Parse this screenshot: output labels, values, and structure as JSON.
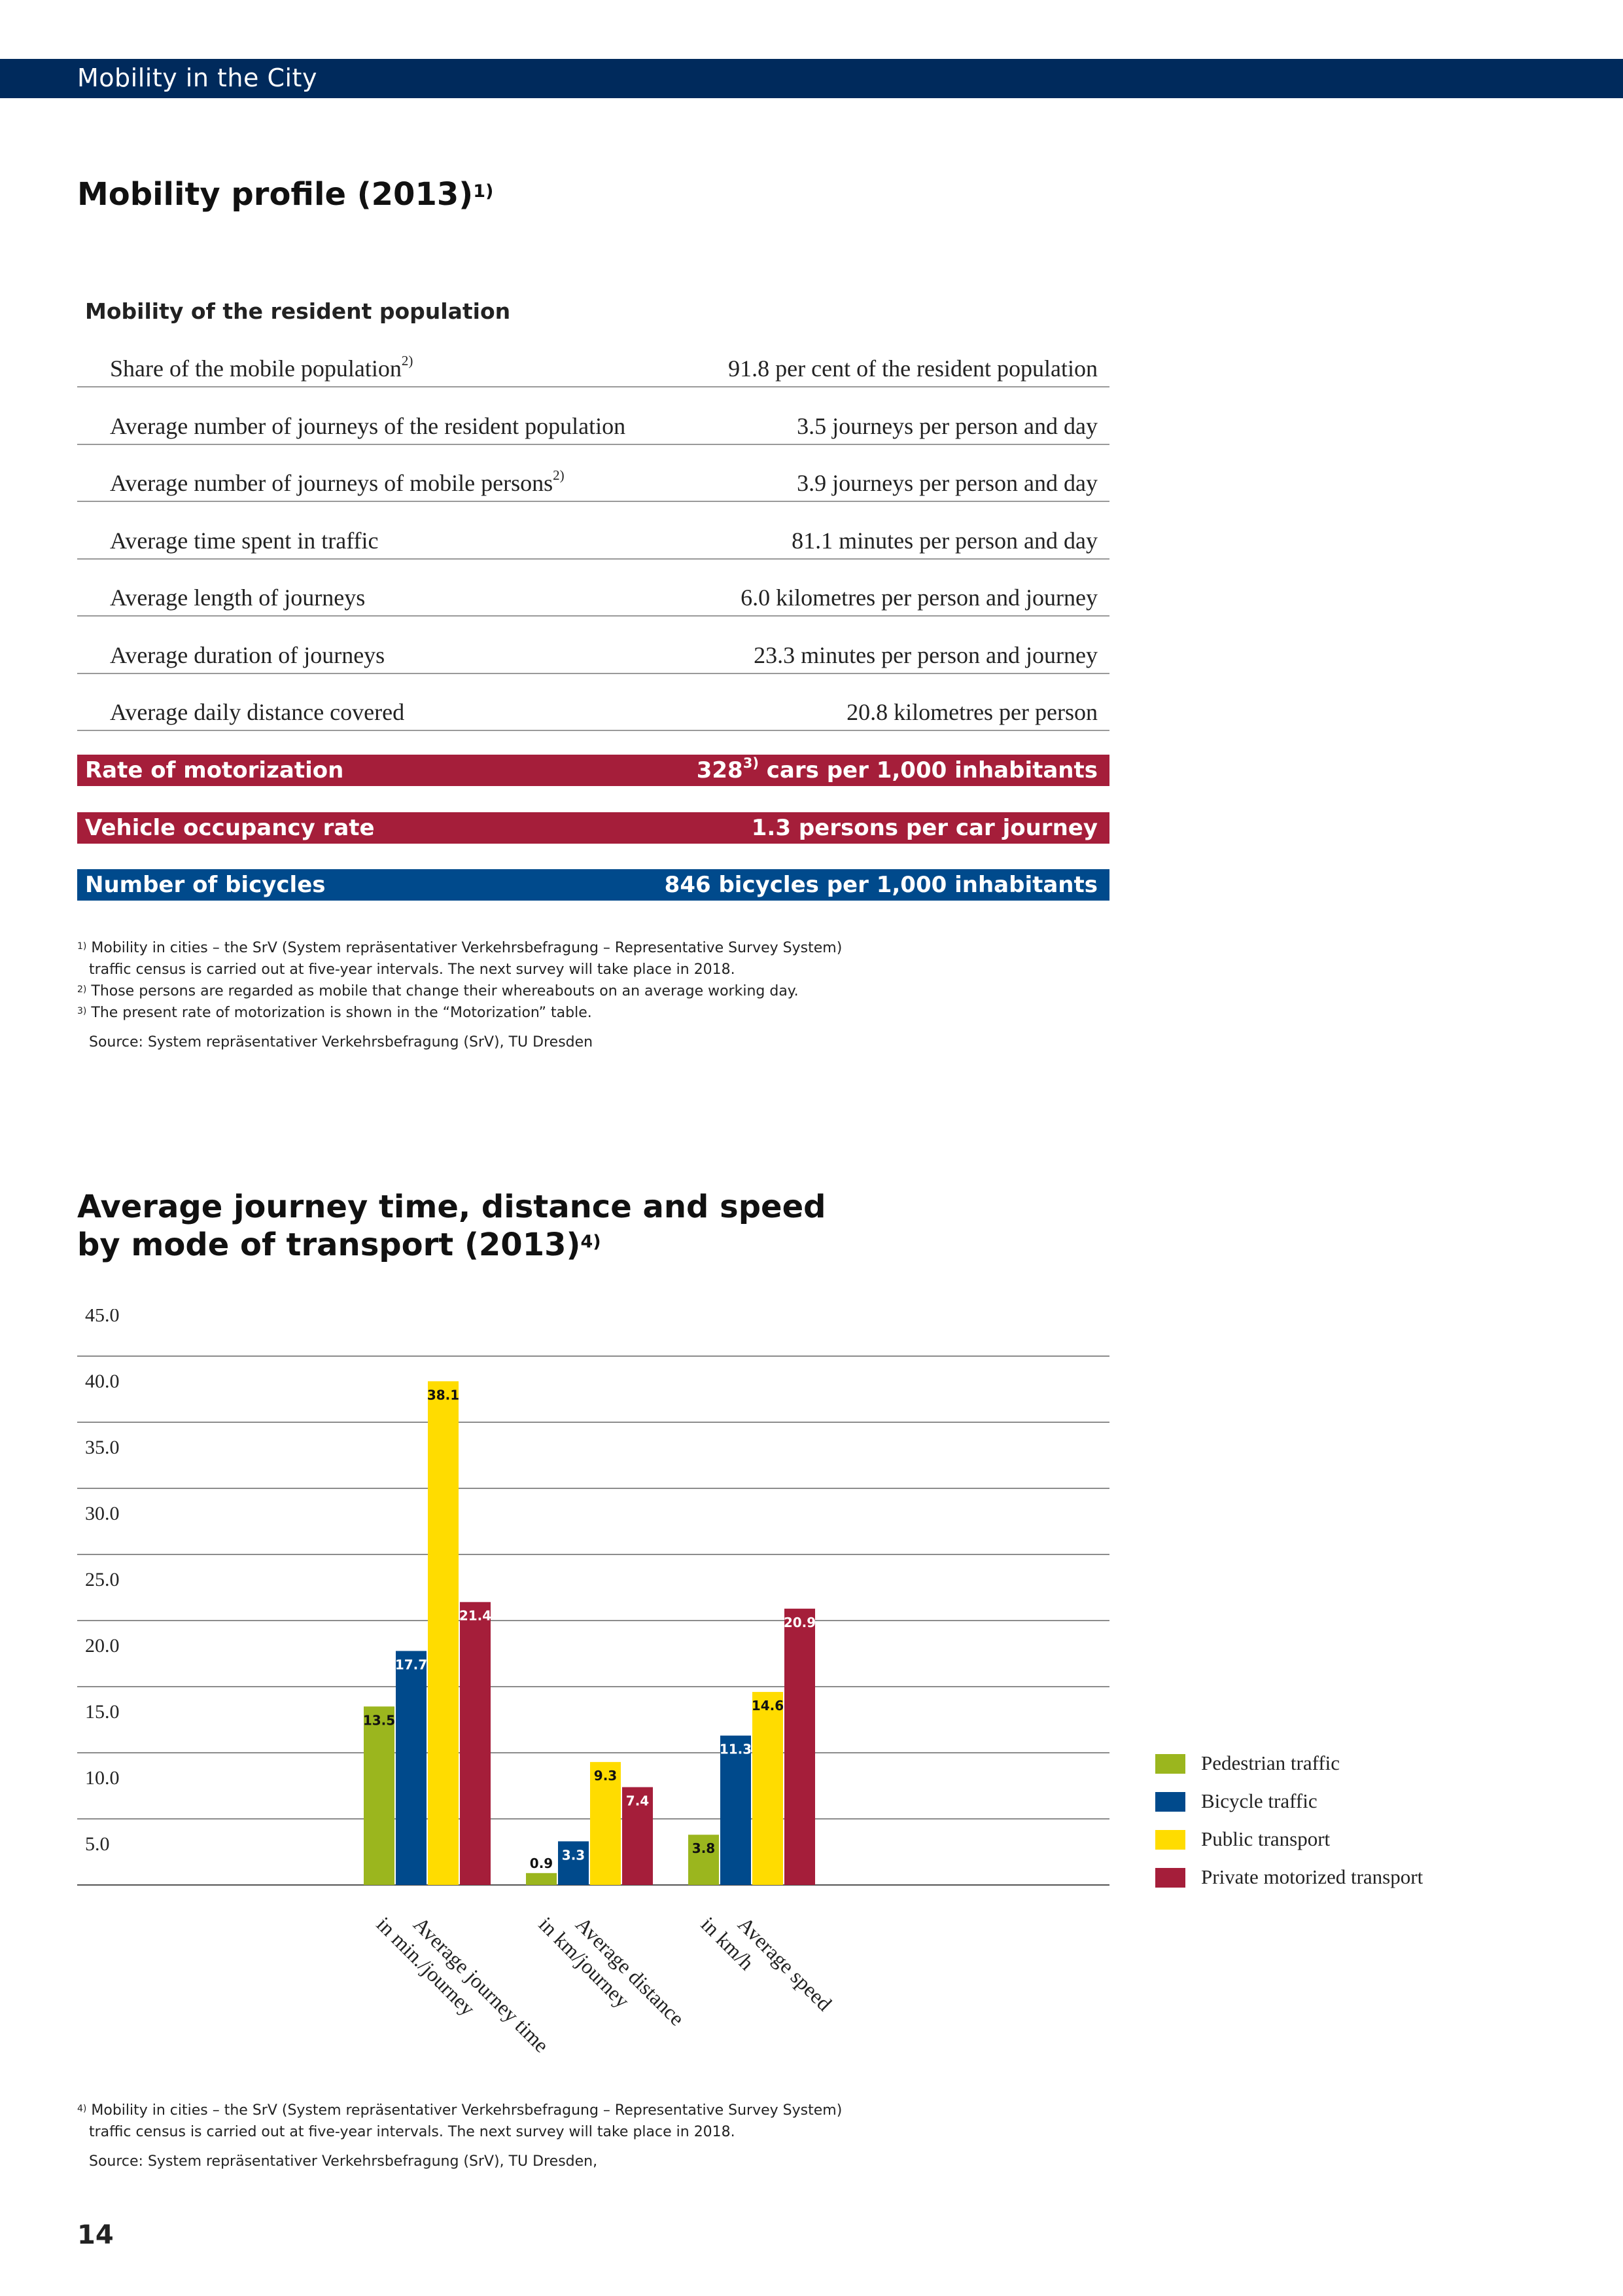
{
  "header": {
    "title": "Mobility in the City"
  },
  "profile": {
    "title": "Mobility profile (2013)",
    "title_sup": "1)",
    "subtitle": "Mobility of the resident population",
    "rows": [
      {
        "label": "Share of the mobile population",
        "sup": "2)",
        "value": "91.8 per cent of the resident population"
      },
      {
        "label": "Average number of journeys of the resident population",
        "sup": "",
        "value": "3.5 journeys per person and day"
      },
      {
        "label": "Average number of journeys of mobile persons",
        "sup": "2)",
        "value": "3.9 journeys per person and day"
      },
      {
        "label": "Average time spent in traffic",
        "sup": "",
        "value": "81.1 minutes per person and day"
      },
      {
        "label": "Average length of journeys",
        "sup": "",
        "value": "6.0 kilometres per person and journey"
      },
      {
        "label": "Average duration of journeys",
        "sup": "",
        "value": "23.3 minutes per person and journey"
      },
      {
        "label": "Average daily distance covered",
        "sup": "",
        "value": "20.8 kilometres per person"
      }
    ],
    "highlights": [
      {
        "label": "Rate of motorization",
        "value_num": "328",
        "value_sup": "3)",
        "value_rest": "cars per 1,000 inhabitants",
        "color": "#a51e3a"
      },
      {
        "label": "Vehicle occupancy rate",
        "value_num": "",
        "value_sup": "",
        "value_rest": "1.3 persons per car journey",
        "color": "#a51e3a"
      },
      {
        "label": "Number of bicycles",
        "value_num": "",
        "value_sup": "",
        "value_rest": "846 bicycles per 1,000 inhabitants",
        "color": "#004a8c"
      }
    ],
    "footnotes": {
      "n1_mark": "1)",
      "n1_line1": "Mobility in cities – the SrV (System repräsentativer Verkehrsbefragung – Representative Survey System)",
      "n1_line2": "traffic census is carried out at five-year intervals. The next survey will take place in 2018.",
      "n2_mark": "2)",
      "n2_line1": "Those persons are regarded as mobile that change their whereabouts on an average working day.",
      "n3_mark": "3)",
      "n3_line1": "The present rate of motorization is shown in the “Motorization” table.",
      "source": "Source: System repräsentativer Verkehrsbefragung (SrV), TU Dresden"
    }
  },
  "chart_section": {
    "title_line1": "Average journey time, distance and speed",
    "title_line2": "by mode of transport (2013)",
    "title_sup": "4)",
    "footnotes": {
      "n4_mark": "4)",
      "n4_line1": "Mobility in cities – the SrV (System repräsentativer Verkehrsbefragung – Representative Survey System)",
      "n4_line2": "traffic census is carried out at five-year intervals. The next survey will take place in 2018.",
      "source": "Source: System repräsentativer Verkehrsbefragung (SrV), TU Dresden,"
    }
  },
  "chart_data": {
    "type": "bar",
    "title": "Average journey time, distance and speed by mode of transport (2013)",
    "categories": [
      [
        "Average journey time",
        "in min./journey"
      ],
      [
        "Average distance",
        "in km/journey"
      ],
      [
        "Average speed",
        "in km/h"
      ]
    ],
    "series": [
      {
        "name": "Pedestrian traffic",
        "color": "#9bb61e",
        "values": [
          13.5,
          0.9,
          3.8
        ]
      },
      {
        "name": "Bicycle traffic",
        "color": "#004a8c",
        "values": [
          17.7,
          3.3,
          11.3
        ]
      },
      {
        "name": "Public transport",
        "color": "#ffdc00",
        "values": [
          38.1,
          9.3,
          14.6
        ]
      },
      {
        "name": "Private motorized transport",
        "color": "#a51e3a",
        "values": [
          21.4,
          7.4,
          20.9
        ]
      }
    ],
    "y_ticks": [
      "5.0",
      "10.0",
      "15.0",
      "20.0",
      "25.0",
      "30.0",
      "35.0",
      "40.0",
      "45.0"
    ],
    "ylim": [
      0,
      45
    ],
    "grid": true,
    "legend_position": "right"
  },
  "footer": {
    "page_number": "14"
  }
}
